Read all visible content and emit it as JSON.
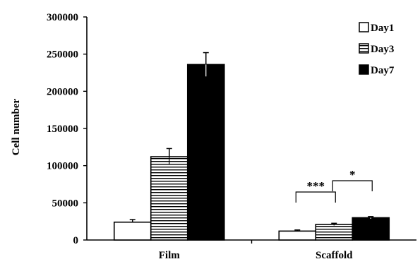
{
  "chart_data": {
    "type": "bar",
    "title": "",
    "xlabel": "",
    "ylabel": "Cell number",
    "ylim": [
      0,
      300000
    ],
    "yticks": [
      0,
      50000,
      100000,
      150000,
      200000,
      250000,
      300000
    ],
    "tick_labels": [
      "0",
      "50000",
      "100000",
      "150000",
      "200000",
      "250000",
      "300000"
    ],
    "categories": [
      "Film",
      "Scaffold"
    ],
    "series": [
      {
        "name": "Day1",
        "pattern": "white",
        "values": [
          24000,
          12000
        ],
        "errors": [
          3500,
          1500
        ]
      },
      {
        "name": "Day3",
        "pattern": "hlines",
        "values": [
          112000,
          21000
        ],
        "errors": [
          11000,
          1500
        ]
      },
      {
        "name": "Day7",
        "pattern": "black",
        "values": [
          236000,
          30000
        ],
        "errors": [
          16000,
          1500
        ]
      }
    ],
    "legend_position": "top-right",
    "grid": false,
    "annotations": [
      {
        "text": "***",
        "category": "Scaffold",
        "from_series": 0,
        "to_series": 1
      },
      {
        "text": "*",
        "category": "Scaffold",
        "from_series": 1,
        "to_series": 2
      }
    ]
  }
}
